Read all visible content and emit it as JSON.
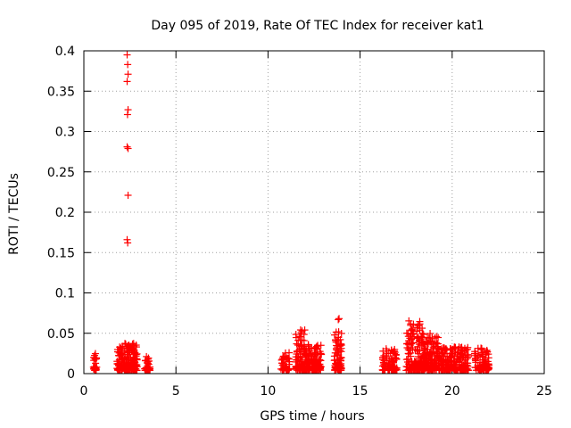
{
  "chart_data": {
    "type": "scatter",
    "title": "Day 095 of 2019, Rate Of TEC Index for receiver kat1",
    "xlabel": "GPS time / hours",
    "ylabel": "ROTI / TECUs",
    "xlim": [
      0,
      25
    ],
    "ylim": [
      0,
      0.4
    ],
    "x_ticks": [
      "0",
      "5",
      "10",
      "15",
      "20",
      "25"
    ],
    "y_ticks": [
      "0",
      "0.05",
      "0.1",
      "0.15",
      "0.2",
      "0.25",
      "0.3",
      "0.35",
      "0.4"
    ],
    "grid": true,
    "marker": "plus",
    "marker_color": "#ff0000",
    "series": [
      {
        "name": "ROTI",
        "points": [
          [
            2.35,
            0.395
          ],
          [
            2.38,
            0.383
          ],
          [
            2.4,
            0.371
          ],
          [
            2.35,
            0.362
          ],
          [
            2.4,
            0.327
          ],
          [
            2.37,
            0.321
          ],
          [
            2.35,
            0.281
          ],
          [
            2.4,
            0.279
          ],
          [
            2.4,
            0.221
          ],
          [
            2.35,
            0.166
          ],
          [
            2.38,
            0.162
          ]
        ],
        "clusters": [
          {
            "x": [
              0.5,
              0.7
            ],
            "y_max": 0.025,
            "density": 30
          },
          {
            "x": [
              1.8,
              2.2
            ],
            "y_max": 0.034,
            "density": 60
          },
          {
            "x": [
              2.2,
              2.9
            ],
            "y_max": 0.038,
            "density": 130
          },
          {
            "x": [
              3.3,
              3.6
            ],
            "y_max": 0.022,
            "density": 35
          },
          {
            "x": [
              10.7,
              11.2
            ],
            "y_max": 0.026,
            "density": 40
          },
          {
            "x": [
              11.5,
              12.0
            ],
            "y_max": 0.058,
            "density": 90
          },
          {
            "x": [
              12.0,
              12.9
            ],
            "y_max": 0.038,
            "density": 130
          },
          {
            "x": [
              13.6,
              14.0
            ],
            "y_max": 0.056,
            "density": 70
          },
          {
            "x": [
              13.8,
              14.0
            ],
            "y_max": 0.081,
            "density": 12
          },
          {
            "x": [
              16.2,
              17.0
            ],
            "y_max": 0.031,
            "density": 100
          },
          {
            "x": [
              17.5,
              18.4
            ],
            "y_max": 0.066,
            "density": 150
          },
          {
            "x": [
              18.4,
              19.3
            ],
            "y_max": 0.05,
            "density": 150
          },
          {
            "x": [
              19.3,
              20.9
            ],
            "y_max": 0.033,
            "density": 200
          },
          {
            "x": [
              21.2,
              22.0
            ],
            "y_max": 0.033,
            "density": 90
          }
        ]
      }
    ]
  }
}
